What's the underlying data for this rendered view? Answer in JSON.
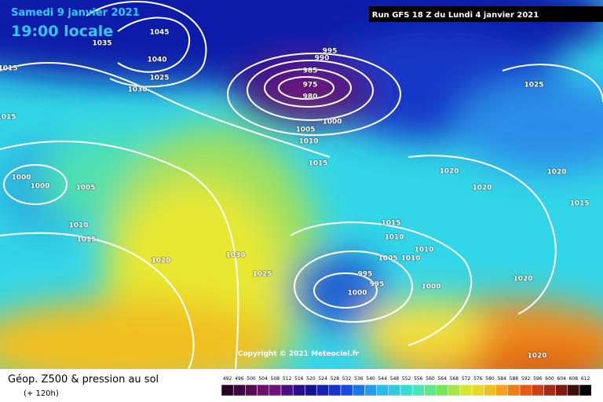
{
  "header": {
    "date": "Samedi 9 janvier 2021",
    "time": "19:00 locale",
    "run": "Run GFS 18 Z du Lundi 4 janvier 2021"
  },
  "copyright": "Copyright © 2021 Meteociel.fr",
  "footer": {
    "title": "Géop. Z500 & pression au sol",
    "lead": "(+ 120h)"
  },
  "isobar_labels": [
    "1045",
    "1040",
    "1035",
    "1025",
    "1030",
    "1015",
    "1015",
    "995",
    "990",
    "985",
    "975",
    "980",
    "1000",
    "1005",
    "1010",
    "1015",
    "1025",
    "1020",
    "1020",
    "1020",
    "1015",
    "1000",
    "1000",
    "1005",
    "1010",
    "1015",
    "1020",
    "1030",
    "1025",
    "1015",
    "1010",
    "1010",
    "1005",
    "1010",
    "995",
    "995",
    "1000",
    "1000",
    "1020",
    "1020"
  ],
  "colorbar": {
    "labels": [
      492,
      496,
      500,
      504,
      508,
      512,
      516,
      520,
      524,
      528,
      532,
      536,
      540,
      544,
      548,
      552,
      556,
      560,
      564,
      568,
      572,
      576,
      580,
      584,
      588,
      592,
      596,
      600,
      604,
      608,
      612
    ]
  }
}
